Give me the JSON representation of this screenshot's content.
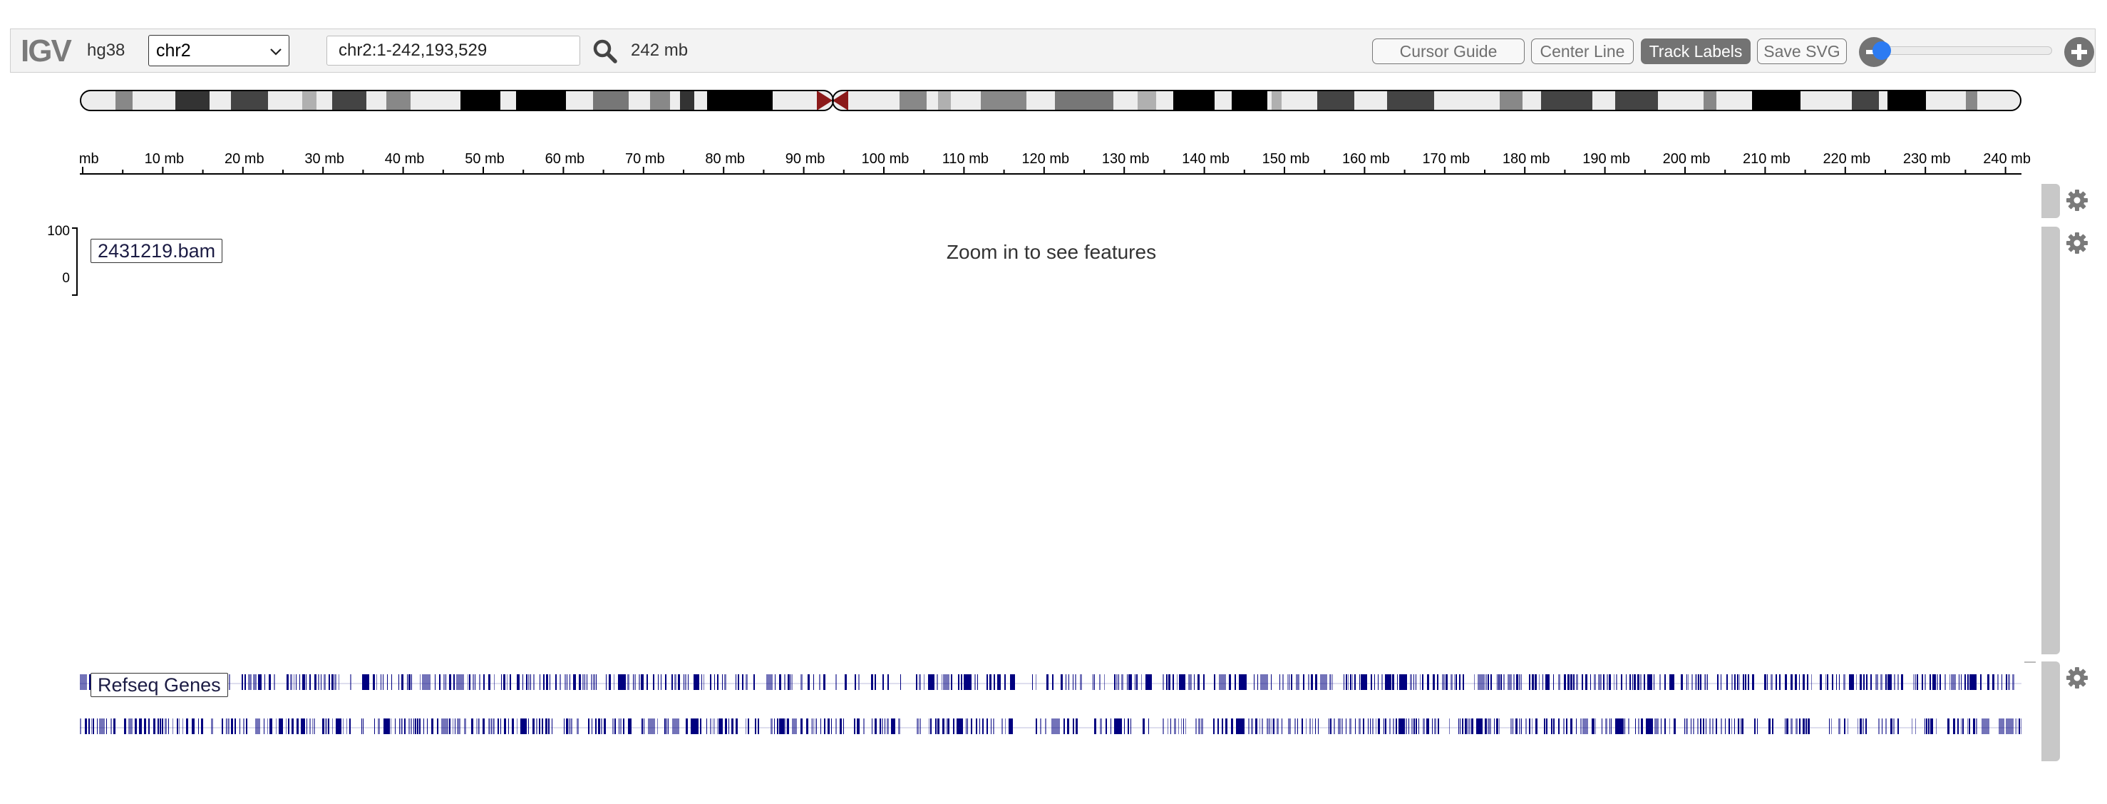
{
  "app": {
    "logo": "IGV",
    "genome": "hg38"
  },
  "navbar": {
    "chromosome": "chr2",
    "locus": "chr2:1-242,193,529",
    "window_size": "242 mb",
    "buttons": {
      "cursor_guide": "Cursor Guide",
      "center_line": "Center Line",
      "track_labels": "Track Labels",
      "save_svg": "Save SVG"
    },
    "icons": {
      "search": "search-icon",
      "zoom_out": "minus-circle-icon",
      "zoom_in": "plus-circle-icon",
      "dropdown": "chevron-down-icon"
    },
    "zoom_level_fraction": 0.0
  },
  "ruler": {
    "labels": [
      "mb",
      "10 mb",
      "20 mb",
      "30 mb",
      "40 mb",
      "50 mb",
      "60 mb",
      "70 mb",
      "80 mb",
      "90 mb",
      "100 mb",
      "110 mb",
      "120 mb",
      "130 mb",
      "140 mb",
      "150 mb",
      "160 mb",
      "170 mb",
      "180 mb",
      "190 mb",
      "200 mb",
      "210 mb",
      "220 mb",
      "230 mb",
      "240 mb"
    ]
  },
  "tracks": {
    "bam": {
      "name": "2431219.bam",
      "axis_max": "100",
      "axis_min": "0",
      "message": "Zoom in to see features"
    },
    "genes": {
      "name": "Refseq Genes"
    }
  },
  "colors": {
    "gene_feature": "#000080",
    "centromere": "#8b1a1a",
    "accent_blue": "#2c7bf2",
    "active_button": "#737373"
  }
}
